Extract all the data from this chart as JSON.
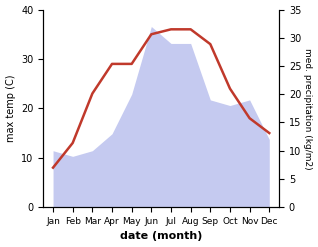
{
  "months": [
    "Jan",
    "Feb",
    "Mar",
    "Apr",
    "May",
    "Jun",
    "Jul",
    "Aug",
    "Sep",
    "Oct",
    "Nov",
    "Dec"
  ],
  "month_indices": [
    1,
    2,
    3,
    4,
    5,
    6,
    7,
    8,
    9,
    10,
    11,
    12
  ],
  "temperature": [
    8,
    13,
    23,
    29,
    29,
    35,
    36,
    36,
    33,
    24,
    18,
    15
  ],
  "precipitation": [
    10,
    9,
    10,
    13,
    20,
    32,
    29,
    29,
    19,
    18,
    19,
    12
  ],
  "temp_color": "#c0392b",
  "precip_fill_color": "#c5caf0",
  "xlabel": "date (month)",
  "ylabel_left": "max temp (C)",
  "ylabel_right": "med. precipitation (kg/m2)",
  "ylim_left": [
    0,
    40
  ],
  "ylim_right": [
    0,
    35
  ],
  "xlim": [
    0.5,
    12.5
  ],
  "yticks_left": [
    0,
    10,
    20,
    30,
    40
  ],
  "yticks_right": [
    0,
    5,
    10,
    15,
    20,
    25,
    30,
    35
  ]
}
